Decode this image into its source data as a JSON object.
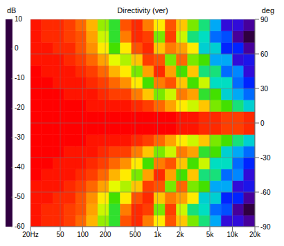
{
  "chart_data": {
    "type": "heatmap",
    "title": "Directivity (ver)",
    "colorbar_label": "dB",
    "y_label": "deg",
    "log": "x",
    "grid": true,
    "xlim": [
      20,
      20000
    ],
    "ylim": [
      -90,
      90
    ],
    "xticks": [
      {
        "value": 20,
        "label": "20Hz"
      },
      50,
      100,
      200,
      500,
      {
        "value": 1000,
        "label": "1k"
      },
      {
        "value": 2000,
        "label": "2k"
      },
      {
        "value": 5000,
        "label": "5k"
      },
      {
        "value": 10000,
        "label": "10k"
      },
      {
        "value": 20000,
        "label": "20k"
      }
    ],
    "yticks": [
      90,
      60,
      30,
      0,
      -30,
      -60,
      -90
    ],
    "color_range": [
      -60,
      10
    ],
    "color_ticks": [
      10,
      0,
      -10,
      -20,
      -30,
      -40,
      -50,
      -60
    ],
    "x_edges": [
      20,
      28,
      40,
      56,
      80,
      112,
      159,
      224,
      317,
      448,
      632,
      893,
      1262,
      1782,
      2518,
      3557,
      5024,
      7096,
      10024,
      14159,
      20000
    ],
    "y_edges": [
      -90,
      -80,
      -70,
      -60,
      -50,
      -40,
      -30,
      -20,
      -10,
      0,
      10,
      20,
      30,
      40,
      50,
      60,
      70,
      80,
      90
    ],
    "cells": [
      [
        -1,
        -2,
        -2,
        -3,
        -5,
        -9,
        -17,
        -22,
        -4,
        -2,
        -6,
        -12,
        -4,
        -10,
        -18,
        -25,
        -35,
        -50,
        -50,
        -55
      ],
      [
        -1,
        -2,
        -2,
        -3,
        -4,
        -8,
        -15,
        -22,
        -6,
        -2,
        -3,
        -18,
        -3,
        -15,
        -25,
        -28,
        -40,
        -42,
        -55,
        -60
      ],
      [
        -1,
        -1,
        -2,
        -2,
        -4,
        -7,
        -12,
        -20,
        -12,
        -4,
        -2,
        -10,
        -6,
        -8,
        -12,
        -30,
        -30,
        -45,
        -45,
        -55
      ],
      [
        -1,
        -1,
        -1,
        -2,
        -3,
        -5,
        -8,
        -14,
        -16,
        -10,
        -3,
        -4,
        -18,
        -5,
        -18,
        -20,
        -35,
        -35,
        -50,
        -48
      ],
      [
        0,
        -1,
        -1,
        -1,
        -2,
        -3,
        -5,
        -9,
        -12,
        -18,
        -8,
        -2,
        -8,
        -20,
        -10,
        -25,
        -25,
        -40,
        -38,
        -50
      ],
      [
        0,
        0,
        -1,
        -1,
        -1,
        -2,
        -3,
        -5,
        -7,
        -12,
        -20,
        -6,
        -4,
        -10,
        -20,
        -15,
        -28,
        -28,
        -40,
        -45
      ],
      [
        0,
        0,
        0,
        -1,
        -1,
        -1,
        -2,
        -3,
        -3,
        -6,
        -10,
        -18,
        -15,
        -6,
        -8,
        -22,
        -20,
        -30,
        -35,
        -40
      ],
      [
        0,
        0,
        0,
        0,
        0,
        -1,
        -1,
        -1,
        -1,
        -2,
        -3,
        -5,
        -8,
        -12,
        -15,
        -10,
        -18,
        -20,
        -25,
        -30
      ],
      [
        0,
        0,
        0,
        0,
        0,
        0,
        0,
        0,
        0,
        0,
        0,
        0,
        0,
        -1,
        -1,
        -2,
        -2,
        -3,
        -3,
        -2
      ],
      [
        0,
        0,
        0,
        0,
        0,
        0,
        0,
        0,
        0,
        0,
        0,
        0,
        0,
        -1,
        -1,
        -2,
        -2,
        -3,
        -3,
        -2
      ],
      [
        0,
        0,
        0,
        0,
        0,
        -1,
        -1,
        -1,
        -1,
        -2,
        -3,
        -5,
        -8,
        -12,
        -15,
        -10,
        -18,
        -20,
        -25,
        -30
      ],
      [
        0,
        0,
        0,
        -1,
        -1,
        -1,
        -2,
        -3,
        -3,
        -6,
        -10,
        -18,
        -15,
        -6,
        -8,
        -22,
        -20,
        -30,
        -35,
        -40
      ],
      [
        0,
        0,
        -1,
        -1,
        -1,
        -2,
        -3,
        -5,
        -7,
        -12,
        -20,
        -6,
        -4,
        -10,
        -20,
        -15,
        -28,
        -28,
        -40,
        -45
      ],
      [
        0,
        -1,
        -1,
        -1,
        -2,
        -3,
        -5,
        -9,
        -12,
        -18,
        -8,
        -2,
        -8,
        -20,
        -10,
        -25,
        -25,
        -40,
        -38,
        -50
      ],
      [
        -1,
        -1,
        -1,
        -2,
        -3,
        -5,
        -8,
        -14,
        -16,
        -10,
        -3,
        -4,
        -18,
        -5,
        -18,
        -20,
        -35,
        -35,
        -50,
        -48
      ],
      [
        -1,
        -1,
        -2,
        -2,
        -4,
        -7,
        -12,
        -20,
        -12,
        -4,
        -2,
        -10,
        -6,
        -8,
        -12,
        -30,
        -30,
        -45,
        -45,
        -55
      ],
      [
        -1,
        -2,
        -2,
        -3,
        -4,
        -8,
        -15,
        -22,
        -6,
        -2,
        -3,
        -18,
        -3,
        -15,
        -25,
        -28,
        -40,
        -42,
        -55,
        -60
      ],
      [
        -1,
        -2,
        -2,
        -3,
        -5,
        -9,
        -17,
        -22,
        -4,
        -2,
        -6,
        -12,
        -4,
        -10,
        -18,
        -25,
        -35,
        -50,
        -50,
        -55
      ]
    ]
  }
}
